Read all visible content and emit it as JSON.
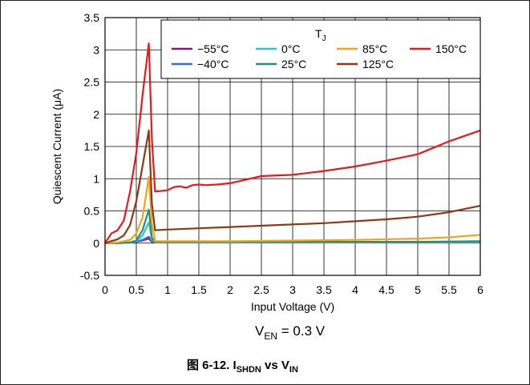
{
  "chart_data": {
    "type": "line",
    "xlabel": "Input Voltage (V)",
    "ylabel": "Quiescent Current (μA)",
    "xlim": [
      0,
      6
    ],
    "ylim": [
      -0.5,
      3.5
    ],
    "xticks": [
      0,
      0.5,
      1,
      1.5,
      2,
      2.5,
      3,
      3.5,
      4,
      4.5,
      5,
      5.5,
      6
    ],
    "xtick_labels": [
      "0",
      "0.5",
      "1",
      "1.5",
      "2",
      "2.5",
      "3",
      "3.5",
      "4",
      "4.5",
      "5",
      "5.5",
      "6"
    ],
    "yticks": [
      -0.5,
      0,
      0.5,
      1,
      1.5,
      2,
      2.5,
      3,
      3.5
    ],
    "ytick_labels": [
      "-0.5",
      "0",
      "0.5",
      "1",
      "1.5",
      "2",
      "2.5",
      "3",
      "3.5"
    ],
    "grid": true,
    "legend_title": "T",
    "legend_title_sub": "J",
    "legend_position": "top-right",
    "annotation": {
      "main": "V",
      "sub": "EN",
      "rest": " = 0.3 V"
    },
    "caption": {
      "prefix": "图 6-12. I",
      "sub1": "SHDN",
      "mid": " vs V",
      "sub2": "IN"
    },
    "series": [
      {
        "name": "−55°C",
        "color": "#7b1a7e",
        "x": [
          0,
          0.2,
          0.4,
          0.5,
          0.6,
          0.7,
          0.75,
          0.8,
          1,
          2,
          3,
          4,
          5,
          6
        ],
        "y": [
          0,
          0,
          0.01,
          0.02,
          0.04,
          0.07,
          0.02,
          0.01,
          0.01,
          0.01,
          0.01,
          0.01,
          0.01,
          0.01
        ]
      },
      {
        "name": "−40°C",
        "color": "#3a6fd8",
        "x": [
          0,
          0.2,
          0.4,
          0.5,
          0.6,
          0.7,
          0.75,
          0.8,
          1,
          2,
          3,
          4,
          5,
          6
        ],
        "y": [
          0,
          0,
          0.01,
          0.02,
          0.05,
          0.1,
          0.03,
          0.01,
          0.01,
          0.01,
          0.01,
          0.01,
          0.01,
          0.01
        ]
      },
      {
        "name": "0°C",
        "color": "#33c4c4",
        "x": [
          0,
          0.2,
          0.4,
          0.5,
          0.6,
          0.7,
          0.75,
          0.8,
          1,
          2,
          3,
          4,
          5,
          6
        ],
        "y": [
          0,
          0,
          0.01,
          0.03,
          0.12,
          0.32,
          0.05,
          0.01,
          0.01,
          0.01,
          0.01,
          0.01,
          0.015,
          0.02
        ]
      },
      {
        "name": "25°C",
        "color": "#2a9070",
        "x": [
          0,
          0.2,
          0.4,
          0.5,
          0.6,
          0.7,
          0.75,
          0.8,
          1,
          2,
          3,
          4,
          5,
          6
        ],
        "y": [
          0,
          0,
          0.01,
          0.04,
          0.2,
          0.52,
          0.08,
          0.02,
          0.02,
          0.02,
          0.02,
          0.02,
          0.02,
          0.03
        ]
      },
      {
        "name": "85°C",
        "color": "#f5a21c",
        "x": [
          0,
          0.2,
          0.4,
          0.5,
          0.6,
          0.7,
          0.75,
          0.8,
          1,
          2,
          3,
          4,
          5,
          5.5,
          6
        ],
        "y": [
          0,
          0.01,
          0.05,
          0.15,
          0.4,
          1.03,
          0.3,
          0.03,
          0.03,
          0.03,
          0.04,
          0.05,
          0.07,
          0.09,
          0.13
        ]
      },
      {
        "name": "125°C",
        "color": "#8b3a12",
        "x": [
          0,
          0.1,
          0.2,
          0.3,
          0.4,
          0.5,
          0.6,
          0.7,
          0.75,
          0.8,
          1,
          1.5,
          2,
          2.5,
          3,
          3.5,
          4,
          4.5,
          5,
          5.5,
          6
        ],
        "y": [
          0,
          0.03,
          0.06,
          0.12,
          0.28,
          0.65,
          1.2,
          1.75,
          0.6,
          0.2,
          0.21,
          0.23,
          0.25,
          0.27,
          0.29,
          0.31,
          0.34,
          0.37,
          0.41,
          0.48,
          0.58
        ]
      },
      {
        "name": "150°C",
        "color": "#e8191d",
        "x": [
          0,
          0.1,
          0.2,
          0.3,
          0.4,
          0.5,
          0.6,
          0.7,
          0.75,
          0.8,
          1,
          1.1,
          1.2,
          1.3,
          1.4,
          1.5,
          1.6,
          1.8,
          2,
          2.5,
          3,
          3.5,
          4,
          4.5,
          5,
          5.5,
          6
        ],
        "y": [
          0,
          0.15,
          0.2,
          0.35,
          0.8,
          1.4,
          2.3,
          3.1,
          1.6,
          0.8,
          0.82,
          0.87,
          0.88,
          0.86,
          0.9,
          0.91,
          0.9,
          0.91,
          0.93,
          1.04,
          1.06,
          1.12,
          1.19,
          1.28,
          1.38,
          1.58,
          1.75
        ]
      }
    ]
  }
}
